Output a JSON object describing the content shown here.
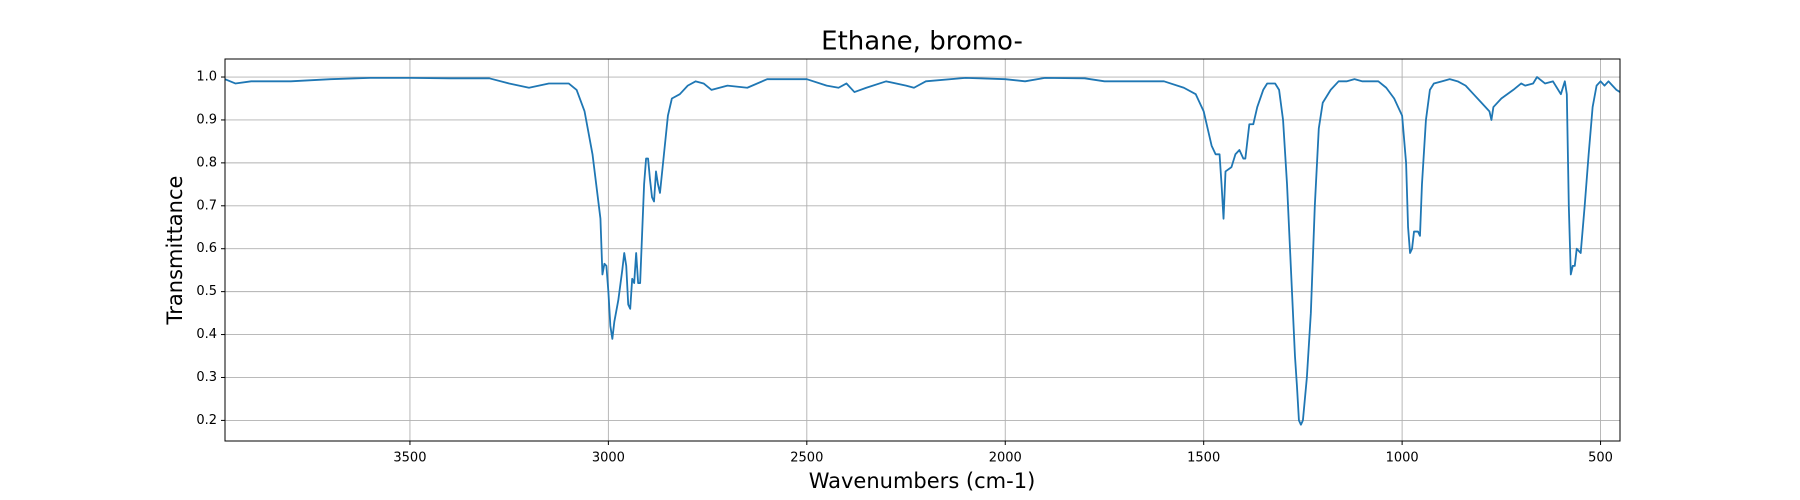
{
  "chart_data": {
    "type": "line",
    "title": "Ethane, bromo-",
    "x_label": "Wavenumbers (cm-1)",
    "y_label": "Transmittance",
    "color": "#1f77b4",
    "grid": true,
    "xlim": [
      3966,
      451
    ],
    "ylim": [
      0.152,
      1.042
    ],
    "xticks": [
      3500,
      3000,
      2500,
      2000,
      1500,
      1000,
      500
    ],
    "yticks": [
      0.2,
      0.3,
      0.4,
      0.5,
      0.6,
      0.7,
      0.8,
      0.9,
      {
        "value": 1,
        "label": "1.0"
      }
    ],
    "x": [
      3966,
      3940,
      3900,
      3800,
      3700,
      3600,
      3500,
      3400,
      3300,
      3250,
      3200,
      3150,
      3100,
      3080,
      3060,
      3040,
      3020,
      3015,
      3010,
      3005,
      3000,
      2995,
      2990,
      2985,
      2975,
      2965,
      2960,
      2955,
      2950,
      2945,
      2940,
      2935,
      2930,
      2925,
      2920,
      2910,
      2905,
      2900,
      2895,
      2890,
      2885,
      2880,
      2875,
      2870,
      2860,
      2850,
      2840,
      2820,
      2800,
      2780,
      2760,
      2740,
      2700,
      2650,
      2600,
      2500,
      2450,
      2420,
      2400,
      2380,
      2350,
      2300,
      2250,
      2230,
      2200,
      2100,
      2000,
      1950,
      1900,
      1800,
      1750,
      1700,
      1600,
      1550,
      1520,
      1500,
      1490,
      1480,
      1470,
      1460,
      1455,
      1450,
      1445,
      1430,
      1420,
      1410,
      1400,
      1395,
      1385,
      1375,
      1365,
      1350,
      1340,
      1320,
      1310,
      1300,
      1290,
      1280,
      1270,
      1265,
      1260,
      1255,
      1250,
      1240,
      1230,
      1220,
      1210,
      1200,
      1180,
      1160,
      1140,
      1120,
      1100,
      1060,
      1040,
      1020,
      1010,
      1000,
      990,
      985,
      980,
      975,
      970,
      960,
      955,
      950,
      940,
      930,
      920,
      900,
      880,
      860,
      840,
      820,
      800,
      780,
      775,
      770,
      750,
      720,
      700,
      690,
      670,
      660,
      640,
      620,
      610,
      600,
      590,
      585,
      580,
      575,
      570,
      565,
      560,
      550,
      540,
      530,
      520,
      510,
      500,
      490,
      480,
      470,
      460,
      451
    ],
    "values": [
      0.995,
      0.985,
      0.99,
      0.99,
      0.995,
      0.998,
      0.998,
      0.997,
      0.997,
      0.985,
      0.975,
      0.985,
      0.985,
      0.97,
      0.92,
      0.82,
      0.67,
      0.54,
      0.565,
      0.56,
      0.5,
      0.42,
      0.39,
      0.43,
      0.48,
      0.55,
      0.59,
      0.56,
      0.47,
      0.46,
      0.53,
      0.52,
      0.59,
      0.52,
      0.52,
      0.75,
      0.81,
      0.81,
      0.76,
      0.72,
      0.71,
      0.78,
      0.75,
      0.73,
      0.82,
      0.91,
      0.95,
      0.96,
      0.98,
      0.99,
      0.985,
      0.97,
      0.98,
      0.975,
      0.995,
      0.995,
      0.98,
      0.975,
      0.985,
      0.965,
      0.975,
      0.99,
      0.98,
      0.975,
      0.99,
      0.998,
      0.995,
      0.99,
      0.998,
      0.997,
      0.99,
      0.99,
      0.99,
      0.975,
      0.96,
      0.92,
      0.88,
      0.84,
      0.82,
      0.82,
      0.75,
      0.67,
      0.78,
      0.79,
      0.82,
      0.83,
      0.81,
      0.81,
      0.89,
      0.89,
      0.93,
      0.97,
      0.985,
      0.985,
      0.97,
      0.9,
      0.75,
      0.55,
      0.35,
      0.28,
      0.2,
      0.19,
      0.2,
      0.3,
      0.45,
      0.7,
      0.88,
      0.94,
      0.97,
      0.99,
      0.99,
      0.995,
      0.99,
      0.99,
      0.975,
      0.95,
      0.93,
      0.91,
      0.8,
      0.65,
      0.59,
      0.6,
      0.64,
      0.64,
      0.63,
      0.75,
      0.9,
      0.97,
      0.985,
      0.99,
      0.995,
      0.99,
      0.98,
      0.96,
      0.94,
      0.92,
      0.9,
      0.93,
      0.95,
      0.97,
      0.985,
      0.98,
      0.985,
      1.0,
      0.985,
      0.99,
      0.975,
      0.96,
      0.99,
      0.96,
      0.7,
      0.54,
      0.56,
      0.56,
      0.6,
      0.59,
      0.7,
      0.82,
      0.93,
      0.98,
      0.99,
      0.98,
      0.99,
      0.98,
      0.97,
      0.965
    ]
  }
}
